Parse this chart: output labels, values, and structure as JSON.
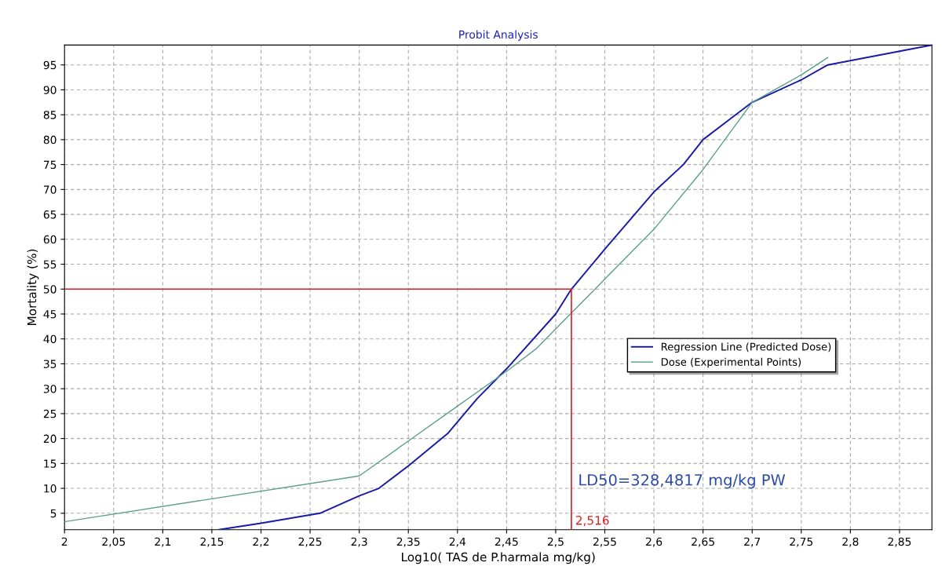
{
  "chart_data": {
    "type": "line",
    "title": "Probit Analysis",
    "xlabel": "Log10( TAS de P.harmala mg/kg)",
    "ylabel": "Mortality (%)",
    "series": [
      {
        "name": "Regression Line (Predicted Dose)",
        "color": "#1a1aa8",
        "x": [
          2.157,
          2.2,
          2.26,
          2.3,
          2.32,
          2.35,
          2.39,
          2.42,
          2.45,
          2.5,
          2.516,
          2.55,
          2.6,
          2.63,
          2.65,
          2.68,
          2.7,
          2.75,
          2.777,
          2.883
        ],
        "values": [
          1.7,
          3,
          5,
          8.5,
          10,
          14.5,
          21,
          28,
          34,
          45,
          50,
          58,
          69.5,
          75,
          80,
          84.5,
          87.5,
          92,
          95,
          99
        ]
      },
      {
        "name": "Dose (Experimental Points)",
        "color": "#5a9e8e",
        "x": [
          2,
          2.3,
          2.35,
          2.4,
          2.45,
          2.48,
          2.5,
          2.55,
          2.6,
          2.65,
          2.7,
          2.75,
          2.777
        ],
        "values": [
          3.3,
          12.5,
          19.5,
          26.5,
          33.5,
          38,
          42,
          52,
          62,
          74,
          87.5,
          93,
          96.5
        ]
      }
    ],
    "xlim": [
      2,
      2.883
    ],
    "ylim": [
      1.7,
      99
    ],
    "xticks": [
      2,
      {
        "value": 2.05,
        "label": "2,05"
      },
      {
        "value": 2.1,
        "label": "2,1"
      },
      {
        "value": 2.15,
        "label": "2,15"
      },
      {
        "value": 2.2,
        "label": "2,2"
      },
      {
        "value": 2.25,
        "label": "2,25"
      },
      {
        "value": 2.3,
        "label": "2,3"
      },
      {
        "value": 2.35,
        "label": "2,35"
      },
      {
        "value": 2.4,
        "label": "2,4"
      },
      {
        "value": 2.45,
        "label": "2,45"
      },
      {
        "value": 2.5,
        "label": "2,5"
      },
      {
        "value": 2.55,
        "label": "2,55"
      },
      {
        "value": 2.6,
        "label": "2,6"
      },
      {
        "value": 2.65,
        "label": "2,65"
      },
      {
        "value": 2.7,
        "label": "2,7"
      },
      {
        "value": 2.75,
        "label": "2,75"
      },
      {
        "value": 2.8,
        "label": "2,8"
      },
      {
        "value": 2.85,
        "label": "2,85"
      }
    ],
    "yticks": [
      5,
      10,
      15,
      20,
      25,
      30,
      35,
      40,
      45,
      50,
      55,
      60,
      65,
      70,
      75,
      80,
      85,
      90,
      95
    ],
    "ref_lines": [
      {
        "axis": "x",
        "value": 2.516,
        "label": "2,516",
        "color": "#e02020"
      },
      {
        "axis": "y",
        "value": 50,
        "color": "#e02020"
      }
    ],
    "annotations": [
      "LD50=328,4817 mg/kg PW"
    ],
    "grid": true,
    "legend": "center right",
    "marker": "none",
    "line_style": "solid"
  }
}
